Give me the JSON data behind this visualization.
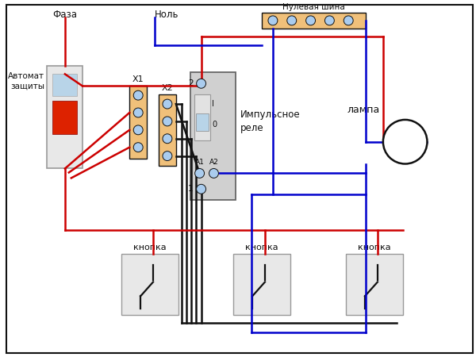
{
  "bg": "#ffffff",
  "red": "#cc0000",
  "blue": "#0000cc",
  "black": "#111111",
  "term_fill": "#f0c07a",
  "dot_fill": "#aaccee",
  "relay_fill": "#cccccc",
  "bus_fill": "#f0c07a",
  "breaker_border": "#999999",
  "breaker_fill": "#e8e8e8",
  "blue_inner": "#b8d4e8",
  "red_inner": "#dd2200",
  "btn_fill": "#e4e4e4",
  "btn_border": "#999999",
  "lbl_faza": "Фаза",
  "lbl_nol": "Ноль",
  "lbl_nulevaya": "Нулевая шина",
  "lbl_avtomat": "Автомат\nзащиты",
  "lbl_lampa": "лампа",
  "lbl_impuls": "Импульсное\nреле",
  "lbl_knopka": "кнопка",
  "lbl_x1": "X1",
  "lbl_x2": "X2",
  "lbl_1": "1",
  "lbl_2": "2",
  "lbl_a1": "A1",
  "lbl_a2": "A2",
  "lbl_i": "I",
  "lbl_0": "0"
}
